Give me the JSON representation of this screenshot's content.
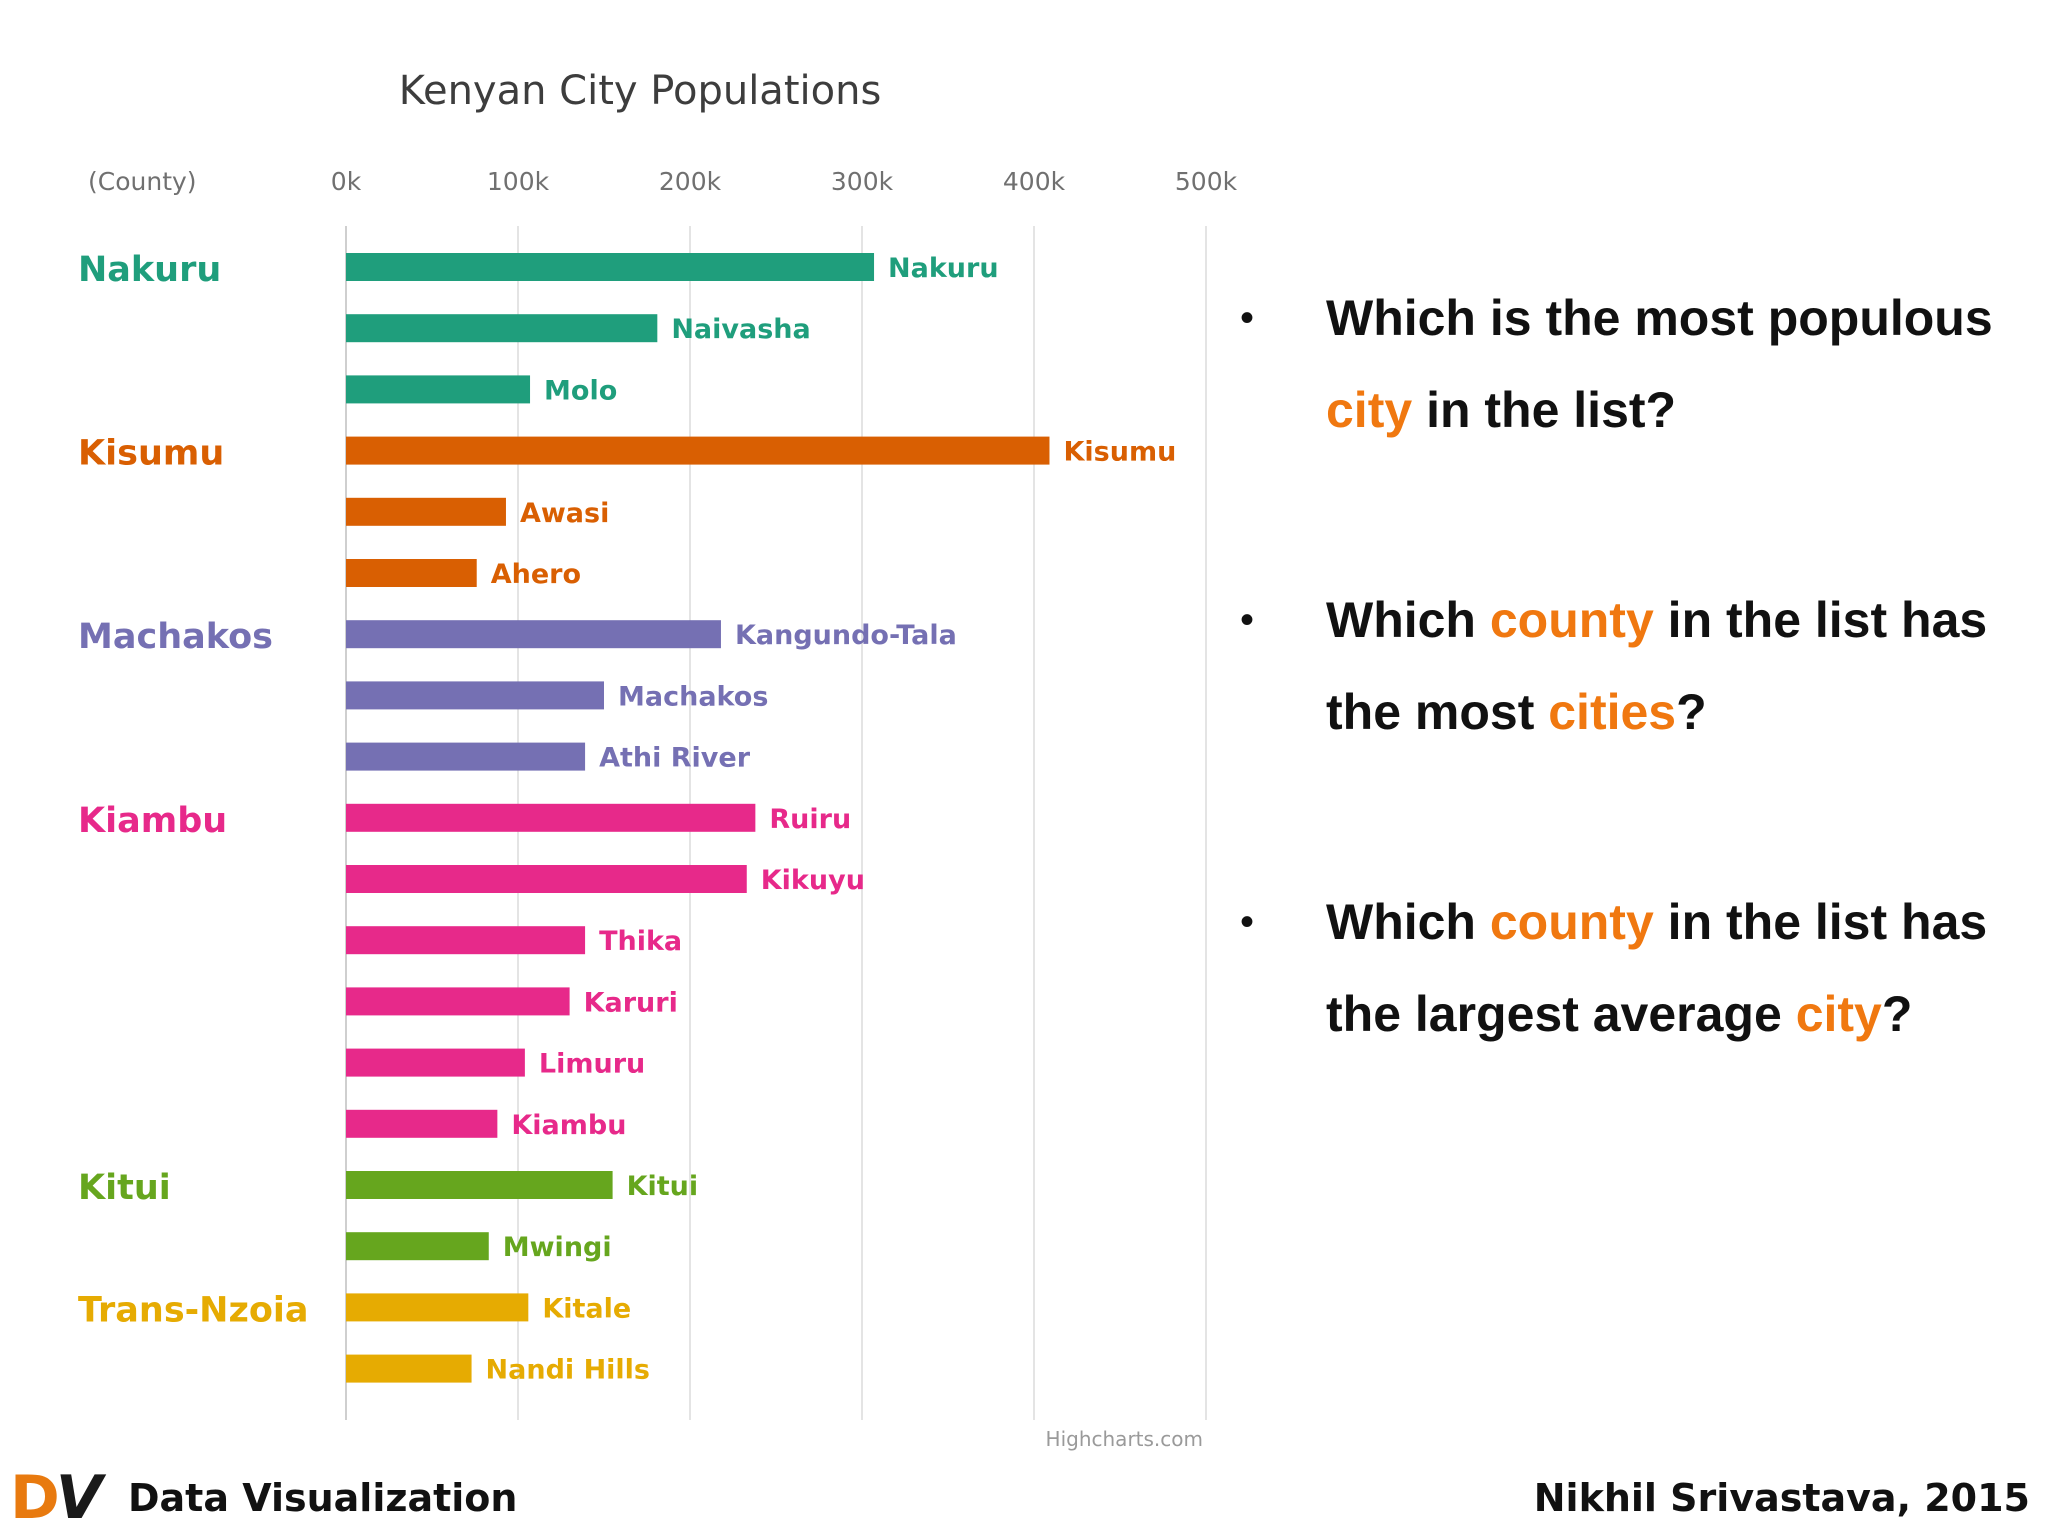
{
  "chart_data": {
    "type": "bar",
    "orientation": "horizontal",
    "title": "Kenyan City Populations",
    "group_axis_label": "(County)",
    "x_ticks": [
      "0k",
      "100k",
      "200k",
      "300k",
      "400k",
      "500k"
    ],
    "xlim": [
      0,
      500000
    ],
    "grid": true,
    "credit": "Highcharts.com",
    "groups": [
      {
        "county": "Nakuru",
        "color": "#1f9e7c",
        "cities": [
          {
            "name": "Nakuru",
            "value": 307000
          },
          {
            "name": "Naivasha",
            "value": 181000
          },
          {
            "name": "Molo",
            "value": 107000
          }
        ]
      },
      {
        "county": "Kisumu",
        "color": "#d95f02",
        "cities": [
          {
            "name": "Kisumu",
            "value": 409000
          },
          {
            "name": "Awasi",
            "value": 93000
          },
          {
            "name": "Ahero",
            "value": 76000
          }
        ]
      },
      {
        "county": "Machakos",
        "color": "#7570b3",
        "cities": [
          {
            "name": "Kangundo-Tala",
            "value": 218000
          },
          {
            "name": "Machakos",
            "value": 150000
          },
          {
            "name": "Athi River",
            "value": 139000
          }
        ]
      },
      {
        "county": "Kiambu",
        "color": "#e7298a",
        "cities": [
          {
            "name": "Ruiru",
            "value": 238000
          },
          {
            "name": "Kikuyu",
            "value": 233000
          },
          {
            "name": "Thika",
            "value": 139000
          },
          {
            "name": "Karuri",
            "value": 130000
          },
          {
            "name": "Limuru",
            "value": 104000
          },
          {
            "name": "Kiambu",
            "value": 88000
          }
        ]
      },
      {
        "county": "Kitui",
        "color": "#66a61e",
        "cities": [
          {
            "name": "Kitui",
            "value": 155000
          },
          {
            "name": "Mwingi",
            "value": 83000
          }
        ]
      },
      {
        "county": "Trans-Nzoia",
        "color": "#e6ab02",
        "cities": [
          {
            "name": "Kitale",
            "value": 106000
          },
          {
            "name": "Nandi Hills",
            "value": 73000
          }
        ]
      }
    ]
  },
  "questions": [
    {
      "parts": [
        "Which is the most populous ",
        "city",
        " in the list?"
      ]
    },
    {
      "parts": [
        "Which ",
        "county",
        " in the list has the most ",
        "cities",
        "?"
      ]
    },
    {
      "parts": [
        "Which ",
        "county",
        " in the list has the largest average ",
        "city",
        "?"
      ]
    }
  ],
  "footer": {
    "logo_d": "D",
    "logo_v": "V",
    "left_text": "Data Visualization",
    "right_text": "Nikhil Srivastava, 2015"
  }
}
